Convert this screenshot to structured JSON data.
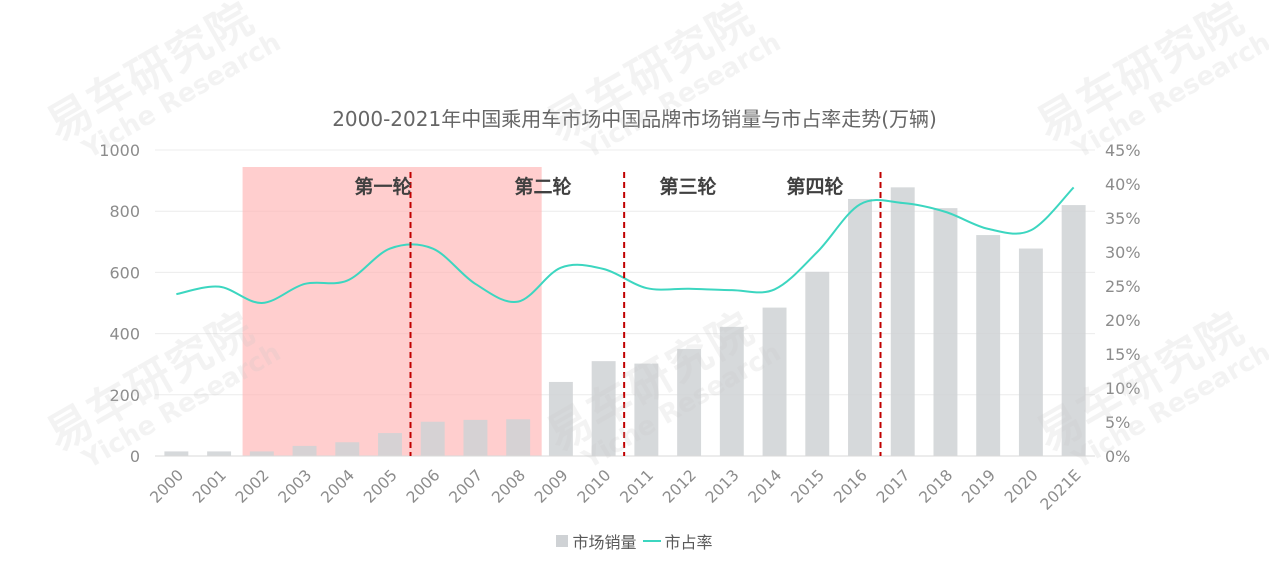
{
  "title": "2000-2021年中国乘用车市场中国品牌市场销量与市占率走势(万辆)",
  "legend": {
    "bar_label": "市场销量",
    "line_label": "市占率"
  },
  "watermark": {
    "cn": "易车研究院",
    "en": "Yiche Research"
  },
  "colors": {
    "bar": "#cfd2d5",
    "line": "#3cd6c0",
    "highlight": "#ffb3b3",
    "divider": "#c00000"
  },
  "chart_data": {
    "type": "bar",
    "categories": [
      "2000",
      "2001",
      "2002",
      "2003",
      "2004",
      "2005",
      "2006",
      "2007",
      "2008",
      "2009",
      "2010",
      "2011",
      "2012",
      "2013",
      "2014",
      "2015",
      "2016",
      "2017",
      "2018",
      "2019",
      "2020",
      "2021E"
    ],
    "series": [
      {
        "name": "市场销量",
        "type": "bar",
        "axis": "left",
        "values": [
          15,
          15,
          15,
          33,
          45,
          75,
          112,
          118,
          120,
          242,
          310,
          302,
          350,
          422,
          485,
          602,
          840,
          878,
          810,
          722,
          678,
          820
        ]
      },
      {
        "name": "市占率",
        "type": "line",
        "axis": "right",
        "values": [
          23.8,
          24.9,
          22.5,
          25.3,
          25.8,
          30.5,
          30.5,
          25.3,
          22.7,
          27.7,
          27.5,
          24.7,
          24.6,
          24.4,
          24.5,
          30.0,
          37.0,
          37.2,
          35.9,
          33.4,
          33.2,
          39.5
        ]
      }
    ],
    "left_axis": {
      "ylim": [
        0,
        1000
      ],
      "ticks": [
        0,
        200,
        400,
        600,
        800,
        1000
      ]
    },
    "right_axis": {
      "ylim": [
        0,
        45
      ],
      "ticks": [
        "0%",
        "5%",
        "10%",
        "15%",
        "20%",
        "25%",
        "30%",
        "35%",
        "40%",
        "45%"
      ]
    },
    "highlight_period": {
      "from": "2002",
      "to": "2008"
    },
    "rounds": [
      {
        "label": "第一轮",
        "divider_after": "2005"
      },
      {
        "label": "第二轮",
        "divider_after": "2010"
      },
      {
        "label": "第三轮",
        "divider_after": ""
      },
      {
        "label": "第四轮",
        "divider_after": "2016"
      }
    ],
    "grid": true
  }
}
